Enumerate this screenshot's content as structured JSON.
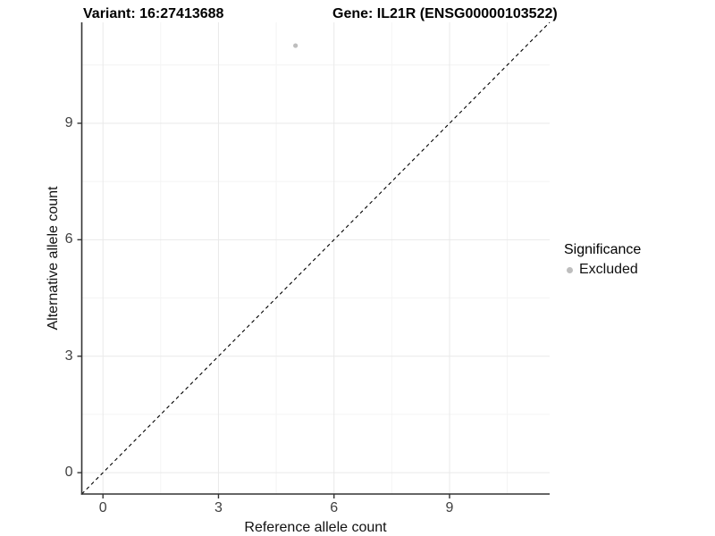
{
  "figure": {
    "variant_title": "Variant: 16:27413688",
    "gene_title": "Gene: IL21R (ENSG00000103522)"
  },
  "chart_data": {
    "type": "scatter",
    "title": "Variant: 16:27413688 / Gene: IL21R (ENSG00000103522)",
    "xlabel": "Reference allele count",
    "ylabel": "Alternative allele count",
    "xlim": [
      -0.55,
      11.6
    ],
    "ylim": [
      -0.55,
      11.6
    ],
    "xticks": [
      0,
      3,
      6,
      9
    ],
    "yticks": [
      0,
      3,
      6,
      9
    ],
    "grid": "major and minor gridlines, light grey, white background",
    "points": [
      {
        "x": 5,
        "y": 11,
        "series": "Excluded"
      }
    ],
    "reference_line": {
      "kind": "identity",
      "slope": 1,
      "intercept": 0,
      "style": "dashed",
      "color": "#000000"
    },
    "legend": {
      "title": "Significance",
      "position": "right",
      "entries": [
        {
          "label": "Excluded",
          "color": "#bebebe"
        }
      ]
    }
  },
  "colors": {
    "background": "#ffffff",
    "grid_major": "#e9e9e9",
    "grid_minor": "#f4f4f4",
    "axis_line": "#333333",
    "tick_mark": "#333333",
    "tick_text": "#404040",
    "title_text": "#000000",
    "point": "#bebebe"
  }
}
